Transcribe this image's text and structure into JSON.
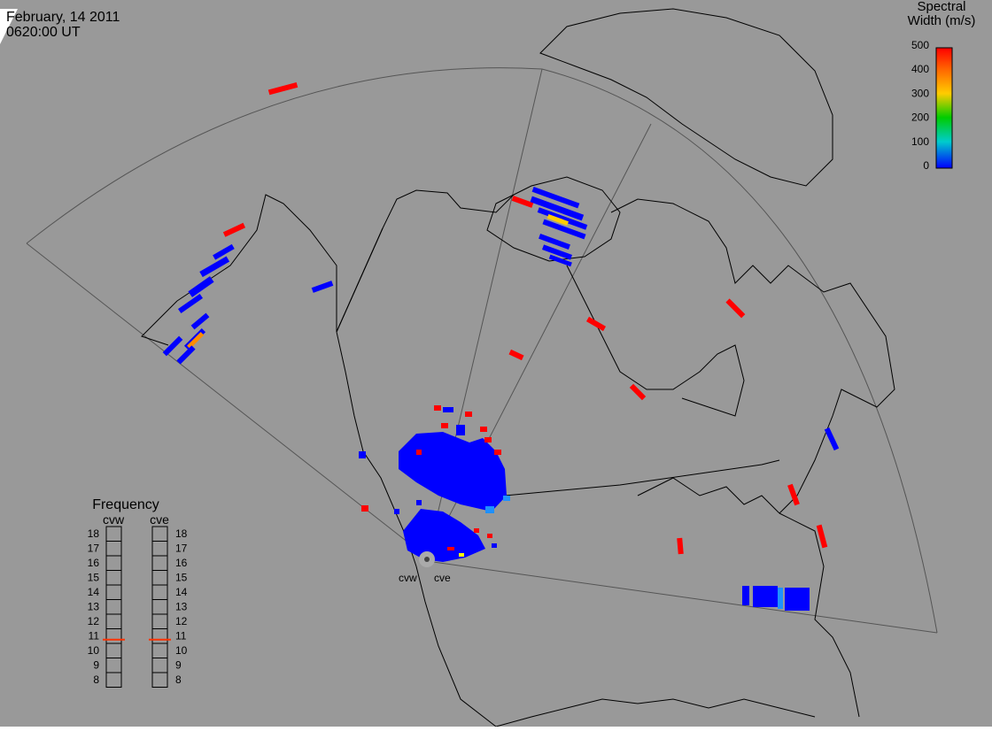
{
  "header": {
    "date": "February, 14 2011",
    "time": "0620:00 UT"
  },
  "colorbar": {
    "title_line1": "Spectral",
    "title_line2": "Width (m/s)",
    "ticks": [
      "500",
      "400",
      "300",
      "200",
      "100",
      "0"
    ],
    "stops": [
      "#ff0000",
      "#ff8000",
      "#ffff00",
      "#00ff00",
      "#00ffff",
      "#0000ff"
    ]
  },
  "frequency": {
    "title": "Frequency",
    "scale": [
      "18",
      "17",
      "16",
      "15",
      "14",
      "13",
      "12",
      "11",
      "10",
      "9",
      "8"
    ],
    "radars": [
      {
        "code": "cvw",
        "value_mhz": 10.7
      },
      {
        "code": "cve",
        "value_mhz": 10.7
      }
    ]
  },
  "radars": [
    {
      "code": "cvw"
    },
    {
      "code": "cve"
    }
  ],
  "colors": {
    "background": "#999999",
    "coast": "#000000",
    "fov": "#555555",
    "low_width": "#0000ff",
    "high_width": "#ff0000",
    "mid_width": "#ff8c00",
    "yellow": "#ffff00",
    "cyan": "#1e90ff",
    "frequency_marker": "#ff3300"
  }
}
